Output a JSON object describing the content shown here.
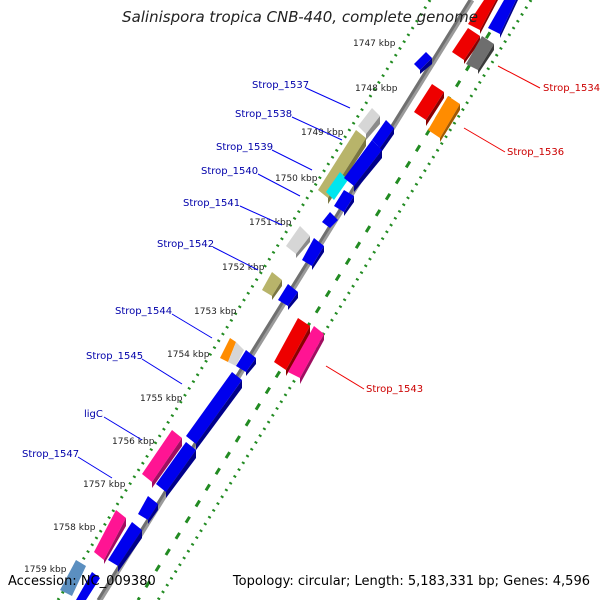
{
  "title": "Salinispora tropica CNB-440, complete genome",
  "accession": "Accession: NC_009380",
  "summary": "Topology: circular; Length: 5,183,331 bp; Genes: 4,596",
  "colors": {
    "blue": "#0000ee",
    "red": "#ee0000",
    "gray": "#6e6e6e",
    "lightgray": "#d0d0d0",
    "orange": "#ff8c00",
    "pink": "#ff1493",
    "olive": "#b8b46a",
    "cyan": "#00e5ee",
    "steelblue": "#5b8fc0",
    "label_left": "#0000aa",
    "label_right": "#cc0000",
    "dotted": "#228b22"
  },
  "scale_ticks": [
    {
      "label": "1747 kbp"
    },
    {
      "label": "1748 kbp"
    },
    {
      "label": "1749 kbp"
    },
    {
      "label": "1750 kbp"
    },
    {
      "label": "1751 kbp"
    },
    {
      "label": "1752 kbp"
    },
    {
      "label": "1753 kbp"
    },
    {
      "label": "1754 kbp"
    },
    {
      "label": "1755 kbp"
    },
    {
      "label": "1756 kbp"
    },
    {
      "label": "1757 kbp"
    },
    {
      "label": "1758 kbp"
    },
    {
      "label": "1759 kbp"
    }
  ],
  "left_labels": [
    {
      "label": "Strop_1537"
    },
    {
      "label": "Strop_1538"
    },
    {
      "label": "Strop_1539"
    },
    {
      "label": "Strop_1540"
    },
    {
      "label": "Strop_1541"
    },
    {
      "label": "Strop_1542"
    },
    {
      "label": "Strop_1544"
    },
    {
      "label": "Strop_1545"
    },
    {
      "label": "ligC"
    },
    {
      "label": "Strop_1547"
    }
  ],
  "right_labels": [
    {
      "label": "Strop_1534"
    },
    {
      "label": "Strop_1536"
    },
    {
      "label": "Strop_1543"
    }
  ]
}
